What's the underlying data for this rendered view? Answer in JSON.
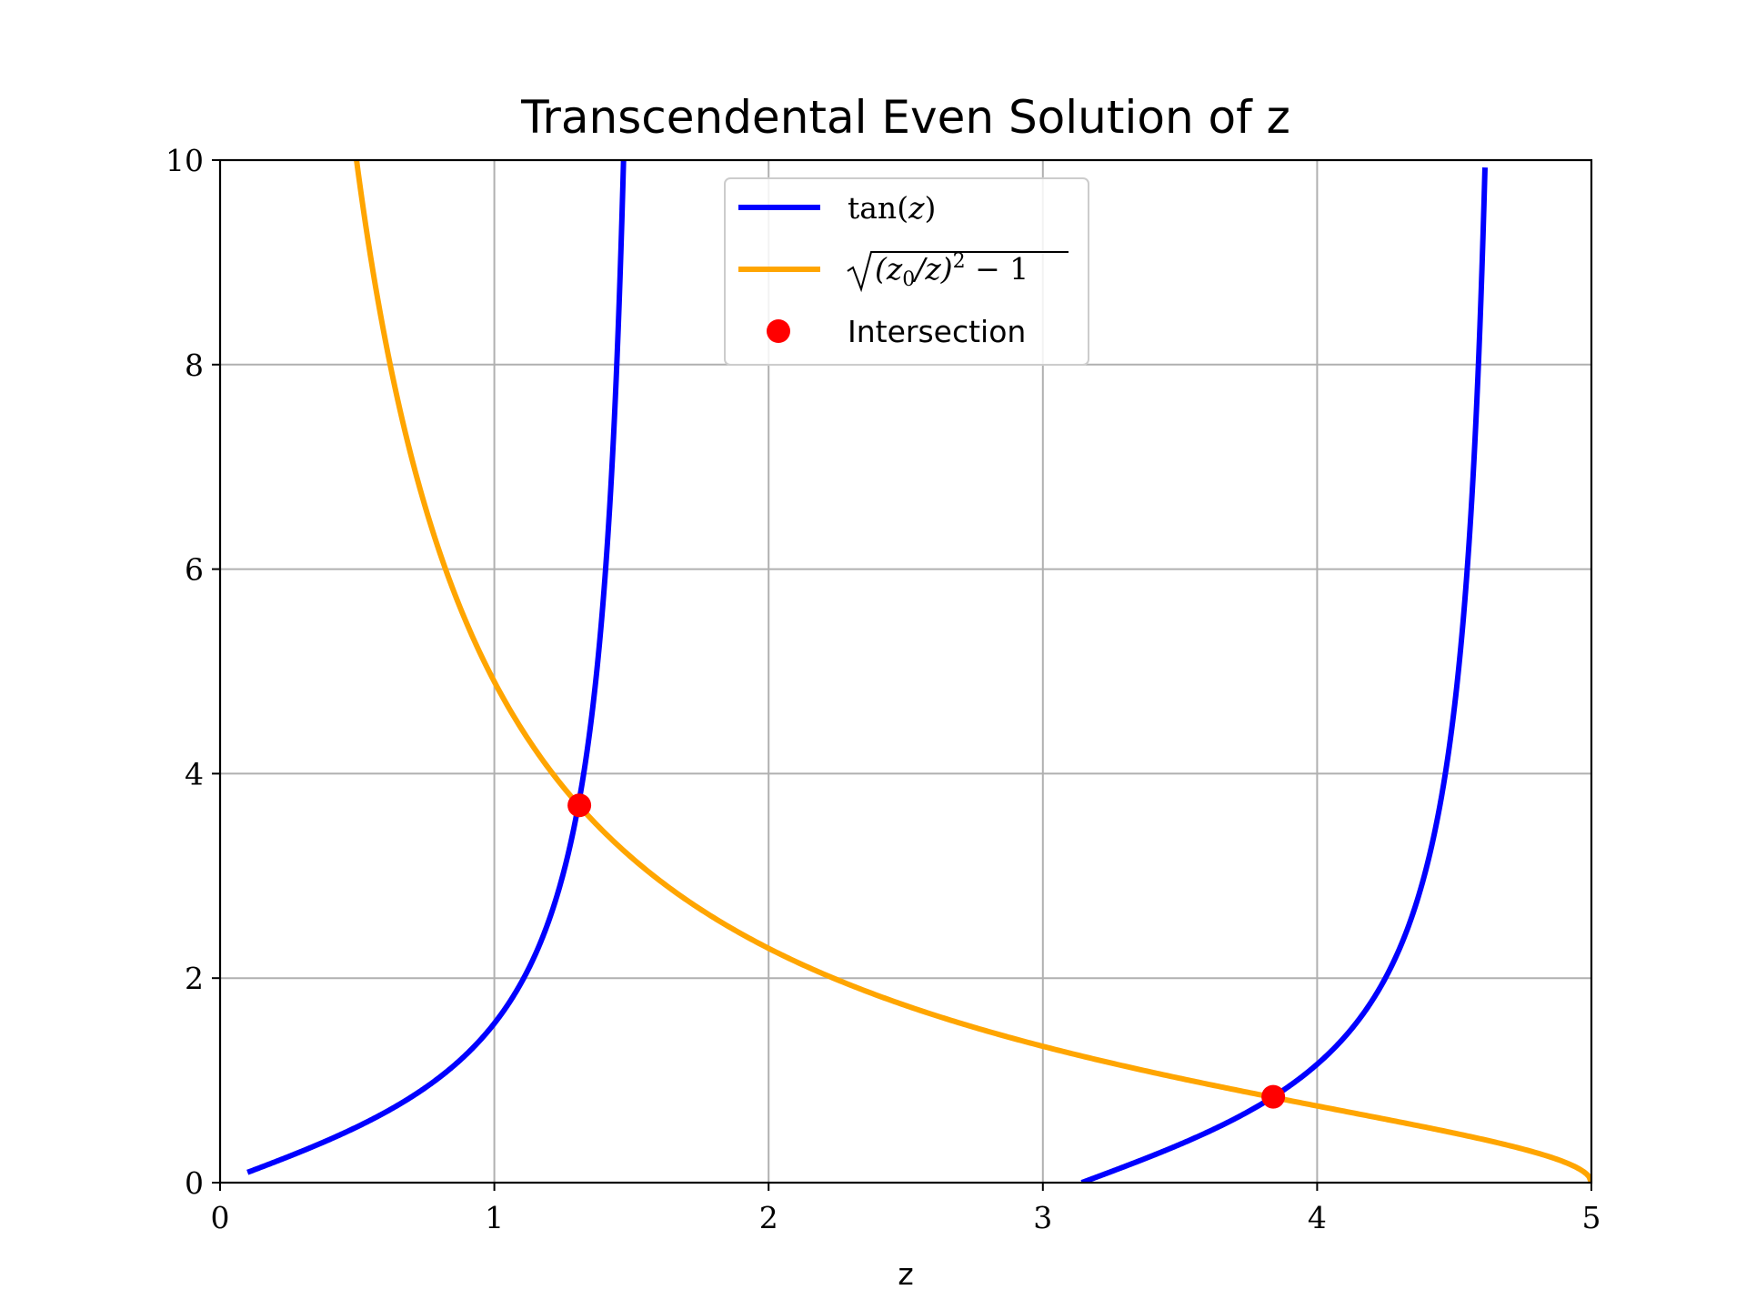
{
  "chart_data": {
    "type": "line",
    "title": "Transcendental Even Solution of z",
    "xlabel": "z",
    "ylabel": "",
    "xlim": [
      0,
      5
    ],
    "ylim": [
      0,
      10
    ],
    "xticks": [
      "0",
      "1",
      "2",
      "3",
      "4",
      "5"
    ],
    "yticks": [
      "0",
      "2",
      "4",
      "6",
      "8",
      "10"
    ],
    "grid": true,
    "legend_position": "upper center",
    "z0": 5,
    "series": [
      {
        "name": "tan(z)",
        "color": "#0000ff",
        "kind": "line",
        "x": [
          0.1,
          0.3,
          0.5,
          0.7,
          0.9,
          1.0,
          1.1,
          1.2,
          1.31,
          1.4,
          1.45,
          1.47,
          3.142,
          3.4,
          3.6,
          3.84,
          4.0,
          4.2,
          4.4,
          4.5,
          4.55,
          4.6
        ],
        "y": [
          0.1,
          0.31,
          0.55,
          0.84,
          1.26,
          1.56,
          1.96,
          2.57,
          3.69,
          5.8,
          8.24,
          9.8,
          0.0,
          0.26,
          0.49,
          0.84,
          1.16,
          1.78,
          3.1,
          4.64,
          5.94,
          8.86
        ]
      },
      {
        "name": "sqrt((z0/z)^2 - 1)",
        "color": "#ffa500",
        "kind": "line",
        "x": [
          0.5,
          0.6,
          0.7,
          0.8,
          1.0,
          1.2,
          1.31,
          1.5,
          2.0,
          2.5,
          3.0,
          3.5,
          3.84,
          4.0,
          4.5,
          4.8,
          4.95,
          5.0
        ],
        "y": [
          9.95,
          8.27,
          7.07,
          6.17,
          4.9,
          4.05,
          3.69,
          3.18,
          2.29,
          1.73,
          1.33,
          1.02,
          0.84,
          0.75,
          0.48,
          0.29,
          0.14,
          0.0
        ]
      },
      {
        "name": "Intersection",
        "color": "#ff0000",
        "kind": "scatter",
        "x": [
          1.31,
          3.84
        ],
        "y": [
          3.69,
          0.84
        ]
      }
    ]
  },
  "legend": {
    "item1_name": "tan",
    "item1_arg": "z",
    "item2_a": "(z",
    "item2_sub": "0",
    "item2_b": "/z)",
    "item2_sup": "2",
    "item2_c": " − 1",
    "item3": "Intersection"
  },
  "colors": {
    "tan": "#0000ff",
    "sqrt": "#ffa500",
    "intersection": "#ff0000",
    "grid": "#b0b0b0"
  }
}
